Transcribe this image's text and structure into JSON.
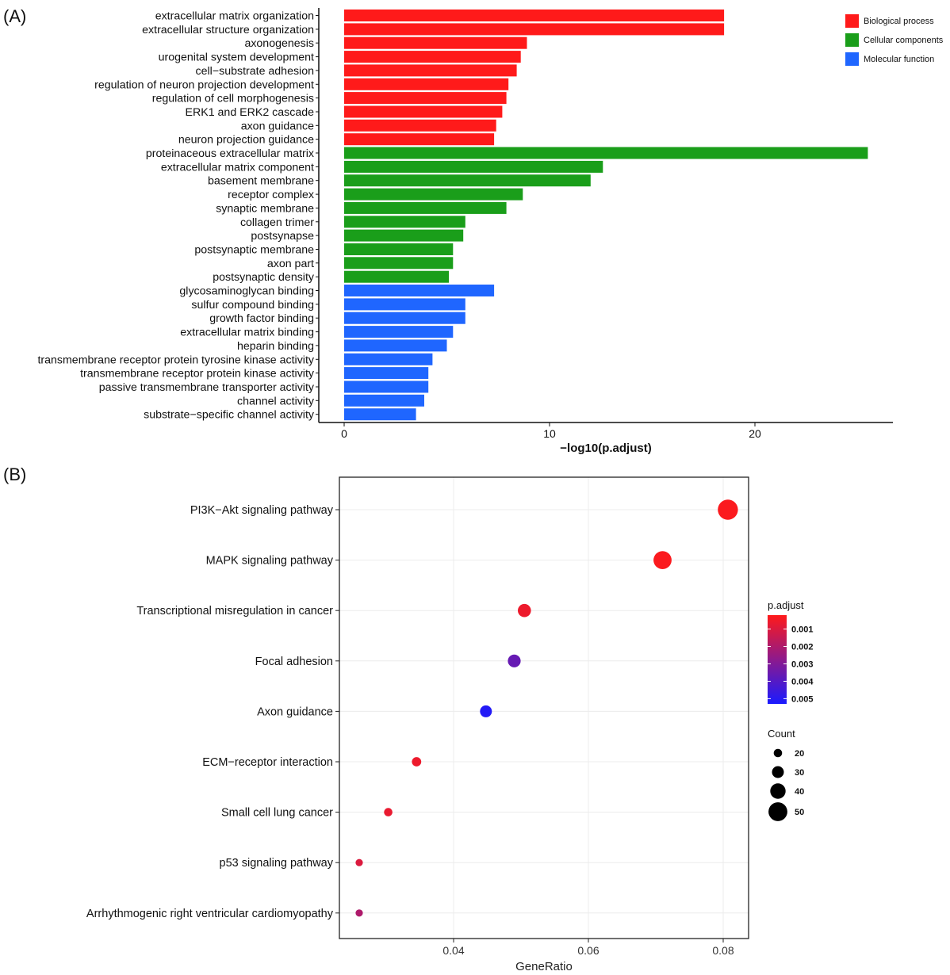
{
  "chart_data": [
    {
      "panel": "(A)",
      "type": "bar",
      "orientation": "horizontal",
      "xlabel": "−log10(p.adjust)",
      "xlim": [
        0,
        26
      ],
      "x_ticks": [
        "0",
        "10",
        "20"
      ],
      "x_tick_values": [
        0,
        10,
        20
      ],
      "legend": [
        {
          "label": "Biological process",
          "color": "#ff1a1a"
        },
        {
          "label": "Cellular components",
          "color": "#1a9e1a"
        },
        {
          "label": "Molecular function",
          "color": "#1f66ff"
        }
      ],
      "legend_position": "top-right",
      "categories": [
        "extracellular matrix organization",
        "extracellular structure organization",
        "axonogenesis",
        "urogenital system development",
        "cell−substrate adhesion",
        "regulation of neuron projection development",
        "regulation of cell morphogenesis",
        "ERK1 and ERK2 cascade",
        "axon guidance",
        "neuron projection guidance",
        "proteinaceous extracellular matrix",
        "extracellular matrix component",
        "basement membrane",
        "receptor complex",
        "synaptic membrane",
        "collagen trimer",
        "postsynapse",
        "postsynaptic membrane",
        "axon part",
        "postsynaptic density",
        "glycosaminoglycan binding",
        "sulfur compound binding",
        "growth factor binding",
        "extracellular matrix binding",
        "heparin binding",
        "transmembrane receptor protein tyrosine kinase activity",
        "transmembrane receptor protein kinase activity",
        "passive transmembrane transporter activity",
        "channel activity",
        "substrate−specific channel activity"
      ],
      "values": [
        18.5,
        18.5,
        8.9,
        8.6,
        8.4,
        8.0,
        7.9,
        7.7,
        7.4,
        7.3,
        25.5,
        12.6,
        12.0,
        8.7,
        7.9,
        5.9,
        5.8,
        5.3,
        5.3,
        5.1,
        7.3,
        5.9,
        5.9,
        5.3,
        5.0,
        4.3,
        4.1,
        4.1,
        3.9,
        3.5
      ],
      "groups": [
        0,
        0,
        0,
        0,
        0,
        0,
        0,
        0,
        0,
        0,
        1,
        1,
        1,
        1,
        1,
        1,
        1,
        1,
        1,
        1,
        2,
        2,
        2,
        2,
        2,
        2,
        2,
        2,
        2,
        2
      ]
    },
    {
      "panel": "(B)",
      "type": "scatter",
      "xlabel": "GeneRatio",
      "xlim": [
        0.0235,
        0.0835
      ],
      "x_ticks": [
        "0.04",
        "0.06",
        "0.08"
      ],
      "x_tick_values": [
        0.04,
        0.06,
        0.08
      ],
      "grid": true,
      "categories": [
        "PI3K−Akt signaling pathway",
        "MAPK signaling pathway",
        "Transcriptional misregulation in cancer",
        "Focal adhesion",
        "Axon guidance",
        "ECM−receptor interaction",
        "Small cell lung cancer",
        "p53 signaling pathway",
        "Arrhythmogenic right ventricular cardiomyopathy"
      ],
      "x": [
        0.0807,
        0.071,
        0.0505,
        0.049,
        0.0448,
        0.0345,
        0.0303,
        0.026,
        0.026
      ],
      "count": [
        54,
        48,
        34,
        33,
        30,
        23,
        20,
        17,
        17
      ],
      "p_adjust": [
        0.0003,
        0.0003,
        0.0006,
        0.0036,
        0.0051,
        0.0006,
        0.0007,
        0.001,
        0.002
      ],
      "color_legend": {
        "title": "p.adjust",
        "ticks": [
          "0.001",
          "0.002",
          "0.003",
          "0.004",
          "0.005"
        ],
        "tick_values": [
          0.001,
          0.002,
          0.003,
          0.004,
          0.005
        ],
        "range": [
          0.0002,
          0.0053
        ],
        "low_color": "#ff1a1a",
        "high_color": "#1a1aff"
      },
      "size_legend": {
        "title": "Count",
        "labels": [
          "20",
          "30",
          "40",
          "50"
        ],
        "values": [
          20,
          30,
          40,
          50
        ]
      }
    }
  ]
}
